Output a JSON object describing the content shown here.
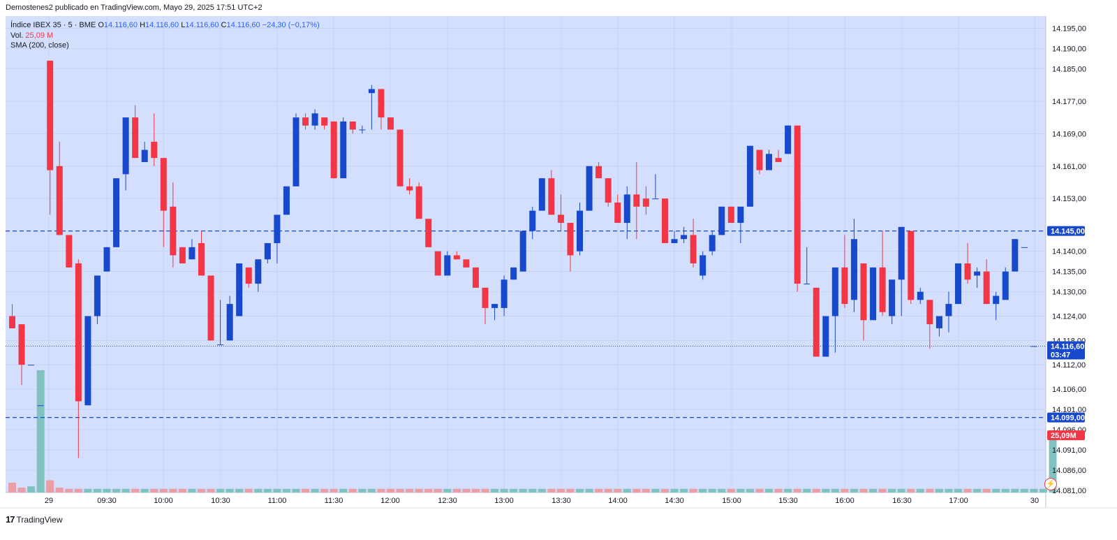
{
  "attribution": "Demostenes2 publicado en TradingView.com, Mayo 29, 2025 17:51 UTC+2",
  "legend": {
    "symbol": "Índice IBEX 35 · 5 · BME",
    "open_label": "O",
    "open": "14.116,60",
    "high_label": "H",
    "high": "14.116,60",
    "low_label": "L",
    "low": "14.116,60",
    "close_label": "C",
    "close": "14.116,60",
    "change": "−24,30 (−0,17%)",
    "volume_label": "Vol.",
    "volume": "25,09 M",
    "sma_label": "SMA (200, close)"
  },
  "footer": {
    "logo_mark": "17",
    "logo_text": "TradingView"
  },
  "icons": {
    "flash": "flash-icon"
  },
  "colors": {
    "background": "#d3dffd",
    "up": "#1848cc",
    "down": "#f23645",
    "vol_up": "#7fc3c0",
    "vol_down": "#eb9ea5",
    "level_line": "#1848cc",
    "badge_blue": "#1848cc",
    "badge_red": "#f23645"
  },
  "chart_data": {
    "type": "candlestick",
    "title": "Índice IBEX 35 · 5 · BME",
    "x_labels": [
      "29",
      "09:30",
      "10:00",
      "10:30",
      "11:00",
      "11:30",
      "12:00",
      "12:30",
      "13:00",
      "13:30",
      "14:00",
      "14:30",
      "15:00",
      "15:30",
      "16:00",
      "16:30",
      "17:00",
      "30"
    ],
    "y_ticks": [
      "14.195,00",
      "14.190,00",
      "14.185,00",
      "14.177,00",
      "14.169,00",
      "14.161,00",
      "14.153,00",
      "14.140,00",
      "14.135,00",
      "14.130,00",
      "14.124,00",
      "14.118,00",
      "14.112,00",
      "14.106,00",
      "14.101,00",
      "14.096,00",
      "14.091,00",
      "14.086,00",
      "14.081,00"
    ],
    "ylim": [
      14080.5,
      14198.0
    ],
    "grid": true,
    "horizontal_levels": [
      {
        "value": 14145.0,
        "label": "14.145,00",
        "style": "dashed"
      },
      {
        "value": 14099.0,
        "label": "14.099,00",
        "style": "dashed"
      }
    ],
    "last_price": {
      "value": 14116.6,
      "label": "14.116,60",
      "countdown": "03:47",
      "style": "dotted"
    },
    "volume_badge": "25,09M",
    "candles": [
      {
        "o": 14124.0,
        "h": 14127.0,
        "l": 14121.0,
        "c": 14121.0
      },
      {
        "o": 14122.0,
        "h": 14122.0,
        "l": 14107.0,
        "c": 14112.0
      },
      {
        "o": 14112.0,
        "h": 14112.0,
        "l": 14112.0,
        "c": 14112.0
      },
      {
        "o": 14102.0,
        "h": 14102.0,
        "l": 14102.0,
        "c": 14102.0
      },
      {
        "o": 14187.0,
        "h": 14187.0,
        "l": 14149.0,
        "c": 14160.0
      },
      {
        "o": 14161.0,
        "h": 14167.0,
        "l": 14144.0,
        "c": 14144.0
      },
      {
        "o": 14144.0,
        "h": 14144.0,
        "l": 14136.0,
        "c": 14136.0
      },
      {
        "o": 14137.0,
        "h": 14138.0,
        "l": 14089.0,
        "c": 14103.0
      },
      {
        "o": 14102.0,
        "h": 14124.0,
        "l": 14102.0,
        "c": 14124.0
      },
      {
        "o": 14124.0,
        "h": 14134.0,
        "l": 14122.0,
        "c": 14134.0
      },
      {
        "o": 14135.0,
        "h": 14141.0,
        "l": 14135.0,
        "c": 14141.0
      },
      {
        "o": 14141.0,
        "h": 14158.0,
        "l": 14141.0,
        "c": 14158.0
      },
      {
        "o": 14159.0,
        "h": 14173.0,
        "l": 14155.0,
        "c": 14173.0
      },
      {
        "o": 14173.0,
        "h": 14176.0,
        "l": 14163.0,
        "c": 14163.0
      },
      {
        "o": 14162.0,
        "h": 14167.0,
        "l": 14162.0,
        "c": 14165.0
      },
      {
        "o": 14167.0,
        "h": 14174.0,
        "l": 14161.0,
        "c": 14163.0
      },
      {
        "o": 14163.0,
        "h": 14163.0,
        "l": 14141.0,
        "c": 14150.0
      },
      {
        "o": 14151.0,
        "h": 14157.0,
        "l": 14136.0,
        "c": 14139.0
      },
      {
        "o": 14141.0,
        "h": 14141.0,
        "l": 14137.0,
        "c": 14137.0
      },
      {
        "o": 14138.0,
        "h": 14143.0,
        "l": 14138.0,
        "c": 14141.0
      },
      {
        "o": 14142.0,
        "h": 14145.0,
        "l": 14134.0,
        "c": 14134.0
      },
      {
        "o": 14134.0,
        "h": 14134.0,
        "l": 14118.0,
        "c": 14118.0
      },
      {
        "o": 14117.0,
        "h": 14128.0,
        "l": 14117.0,
        "c": 14117.0
      },
      {
        "o": 14118.0,
        "h": 14129.0,
        "l": 14118.0,
        "c": 14127.0
      },
      {
        "o": 14124.0,
        "h": 14137.0,
        "l": 14124.0,
        "c": 14137.0
      },
      {
        "o": 14136.0,
        "h": 14136.0,
        "l": 14131.0,
        "c": 14132.0
      },
      {
        "o": 14132.0,
        "h": 14138.0,
        "l": 14130.0,
        "c": 14138.0
      },
      {
        "o": 14138.0,
        "h": 14141.0,
        "l": 14137.0,
        "c": 14142.0
      },
      {
        "o": 14142.0,
        "h": 14149.0,
        "l": 14137.0,
        "c": 14149.0
      },
      {
        "o": 14149.0,
        "h": 14156.0,
        "l": 14149.0,
        "c": 14156.0
      },
      {
        "o": 14156.0,
        "h": 14174.0,
        "l": 14156.0,
        "c": 14173.0
      },
      {
        "o": 14173.0,
        "h": 14174.0,
        "l": 14170.0,
        "c": 14171.0
      },
      {
        "o": 14171.0,
        "h": 14175.0,
        "l": 14170.0,
        "c": 14174.0
      },
      {
        "o": 14173.0,
        "h": 14173.0,
        "l": 14170.0,
        "c": 14171.0
      },
      {
        "o": 14172.0,
        "h": 14172.0,
        "l": 14158.0,
        "c": 14158.0
      },
      {
        "o": 14158.0,
        "h": 14173.0,
        "l": 14158.0,
        "c": 14172.0
      },
      {
        "o": 14172.0,
        "h": 14172.0,
        "l": 14169.0,
        "c": 14170.0
      },
      {
        "o": 14170.0,
        "h": 14171.0,
        "l": 14169.0,
        "c": 14170.0
      },
      {
        "o": 14179.0,
        "h": 14181.0,
        "l": 14170.0,
        "c": 14180.0
      },
      {
        "o": 14180.0,
        "h": 14180.0,
        "l": 14170.0,
        "c": 14173.0
      },
      {
        "o": 14173.0,
        "h": 14173.0,
        "l": 14170.0,
        "c": 14170.0
      },
      {
        "o": 14170.0,
        "h": 14170.0,
        "l": 14156.0,
        "c": 14156.0
      },
      {
        "o": 14156.0,
        "h": 14158.0,
        "l": 14154.0,
        "c": 14155.0
      },
      {
        "o": 14156.0,
        "h": 14157.0,
        "l": 14148.0,
        "c": 14148.0
      },
      {
        "o": 14148.0,
        "h": 14148.0,
        "l": 14141.0,
        "c": 14141.0
      },
      {
        "o": 14140.0,
        "h": 14140.0,
        "l": 14134.0,
        "c": 14134.0
      },
      {
        "o": 14134.0,
        "h": 14140.0,
        "l": 14134.0,
        "c": 14139.0
      },
      {
        "o": 14139.0,
        "h": 14140.0,
        "l": 14138.0,
        "c": 14138.0
      },
      {
        "o": 14138.0,
        "h": 14138.0,
        "l": 14136.0,
        "c": 14136.0
      },
      {
        "o": 14136.0,
        "h": 14136.0,
        "l": 14131.0,
        "c": 14131.0
      },
      {
        "o": 14131.0,
        "h": 14131.0,
        "l": 14122.0,
        "c": 14126.0
      },
      {
        "o": 14126.0,
        "h": 14127.0,
        "l": 14123.0,
        "c": 14127.0
      },
      {
        "o": 14126.0,
        "h": 14134.0,
        "l": 14124.0,
        "c": 14133.0
      },
      {
        "o": 14133.0,
        "h": 14136.0,
        "l": 14133.0,
        "c": 14136.0
      },
      {
        "o": 14135.0,
        "h": 14145.0,
        "l": 14135.0,
        "c": 14145.0
      },
      {
        "o": 14145.0,
        "h": 14151.0,
        "l": 14143.0,
        "c": 14150.0
      },
      {
        "o": 14150.0,
        "h": 14158.0,
        "l": 14150.0,
        "c": 14158.0
      },
      {
        "o": 14158.0,
        "h": 14160.0,
        "l": 14149.0,
        "c": 14149.0
      },
      {
        "o": 14149.0,
        "h": 14154.0,
        "l": 14145.0,
        "c": 14147.0
      },
      {
        "o": 14147.0,
        "h": 14147.0,
        "l": 14135.0,
        "c": 14139.0
      },
      {
        "o": 14140.0,
        "h": 14152.0,
        "l": 14139.0,
        "c": 14150.0
      },
      {
        "o": 14150.0,
        "h": 14161.0,
        "l": 14150.0,
        "c": 14161.0
      },
      {
        "o": 14161.0,
        "h": 14162.0,
        "l": 14158.0,
        "c": 14158.0
      },
      {
        "o": 14158.0,
        "h": 14158.0,
        "l": 14151.0,
        "c": 14152.0
      },
      {
        "o": 14152.0,
        "h": 14154.0,
        "l": 14147.0,
        "c": 14147.0
      },
      {
        "o": 14147.0,
        "h": 14156.0,
        "l": 14143.0,
        "c": 14154.0
      },
      {
        "o": 14154.0,
        "h": 14162.0,
        "l": 14143.0,
        "c": 14151.0
      },
      {
        "o": 14153.0,
        "h": 14156.0,
        "l": 14149.0,
        "c": 14151.0
      },
      {
        "o": 14153.0,
        "h": 14159.0,
        "l": 14153.0,
        "c": 14153.0
      },
      {
        "o": 14153.0,
        "h": 14153.0,
        "l": 14142.0,
        "c": 14142.0
      },
      {
        "o": 14142.0,
        "h": 14145.0,
        "l": 14142.0,
        "c": 14143.0
      },
      {
        "o": 14143.0,
        "h": 14146.0,
        "l": 14142.0,
        "c": 14144.0
      },
      {
        "o": 14144.0,
        "h": 14148.0,
        "l": 14136.0,
        "c": 14137.0
      },
      {
        "o": 14134.0,
        "h": 14140.0,
        "l": 14133.0,
        "c": 14139.0
      },
      {
        "o": 14140.0,
        "h": 14145.0,
        "l": 14139.0,
        "c": 14144.0
      },
      {
        "o": 14144.0,
        "h": 14151.0,
        "l": 14144.0,
        "c": 14151.0
      },
      {
        "o": 14151.0,
        "h": 14151.0,
        "l": 14147.0,
        "c": 14147.0
      },
      {
        "o": 14147.0,
        "h": 14151.0,
        "l": 14142.0,
        "c": 14151.0
      },
      {
        "o": 14151.0,
        "h": 14166.0,
        "l": 14151.0,
        "c": 14166.0
      },
      {
        "o": 14165.0,
        "h": 14165.0,
        "l": 14159.0,
        "c": 14160.0
      },
      {
        "o": 14160.0,
        "h": 14165.0,
        "l": 14160.0,
        "c": 14164.0
      },
      {
        "o": 14163.0,
        "h": 14165.0,
        "l": 14162.0,
        "c": 14162.0
      },
      {
        "o": 14164.0,
        "h": 14171.0,
        "l": 14164.0,
        "c": 14171.0
      },
      {
        "o": 14171.0,
        "h": 14171.0,
        "l": 14130.0,
        "c": 14132.0
      },
      {
        "o": 14132.0,
        "h": 14141.0,
        "l": 14132.0,
        "c": 14132.0
      },
      {
        "o": 14131.0,
        "h": 14131.0,
        "l": 14114.0,
        "c": 14114.0
      },
      {
        "o": 14114.0,
        "h": 14124.0,
        "l": 14114.0,
        "c": 14124.0
      },
      {
        "o": 14124.0,
        "h": 14136.0,
        "l": 14115.0,
        "c": 14136.0
      },
      {
        "o": 14136.0,
        "h": 14144.0,
        "l": 14126.0,
        "c": 14127.0
      },
      {
        "o": 14128.0,
        "h": 14148.0,
        "l": 14125.0,
        "c": 14143.0
      },
      {
        "o": 14137.0,
        "h": 14137.0,
        "l": 14118.0,
        "c": 14123.0
      },
      {
        "o": 14123.0,
        "h": 14136.0,
        "l": 14123.0,
        "c": 14136.0
      },
      {
        "o": 14136.0,
        "h": 14145.0,
        "l": 14124.0,
        "c": 14125.0
      },
      {
        "o": 14124.0,
        "h": 14133.0,
        "l": 14122.0,
        "c": 14133.0
      },
      {
        "o": 14133.0,
        "h": 14146.0,
        "l": 14124.0,
        "c": 14146.0
      },
      {
        "o": 14145.0,
        "h": 14145.0,
        "l": 14127.0,
        "c": 14128.0
      },
      {
        "o": 14128.0,
        "h": 14131.0,
        "l": 14127.0,
        "c": 14130.0
      },
      {
        "o": 14128.0,
        "h": 14128.0,
        "l": 14116.0,
        "c": 14122.0
      },
      {
        "o": 14121.0,
        "h": 14124.0,
        "l": 14119.0,
        "c": 14124.0
      },
      {
        "o": 14124.0,
        "h": 14130.0,
        "l": 14120.0,
        "c": 14127.0
      },
      {
        "o": 14127.0,
        "h": 14137.0,
        "l": 14127.0,
        "c": 14137.0
      },
      {
        "o": 14137.0,
        "h": 14142.0,
        "l": 14132.0,
        "c": 14133.0
      },
      {
        "o": 14134.0,
        "h": 14136.0,
        "l": 14131.0,
        "c": 14135.0
      },
      {
        "o": 14135.0,
        "h": 14138.0,
        "l": 14127.0,
        "c": 14127.0
      },
      {
        "o": 14127.0,
        "h": 14130.0,
        "l": 14123.0,
        "c": 14129.0
      },
      {
        "o": 14128.0,
        "h": 14136.0,
        "l": 14128.0,
        "c": 14135.0
      },
      {
        "o": 14135.0,
        "h": 14143.0,
        "l": 14135.0,
        "c": 14143.0
      },
      {
        "o": 14141.0,
        "h": 14141.0,
        "l": 14141.0,
        "c": 14141.0
      },
      {
        "o": 14116.6,
        "h": 14116.6,
        "l": 14116.6,
        "c": 14116.6
      }
    ],
    "volume_max": 100,
    "volume": [
      8,
      4,
      5,
      100,
      10,
      4,
      3,
      3,
      3,
      3,
      3,
      3,
      3,
      3,
      3,
      3,
      3,
      3,
      3,
      3,
      3,
      3,
      3,
      3,
      3,
      3,
      3,
      3,
      3,
      3,
      3,
      3,
      3,
      3,
      3,
      3,
      3,
      3,
      3,
      3,
      3,
      3,
      3,
      3,
      3,
      3,
      3,
      3,
      3,
      3,
      3,
      3,
      3,
      3,
      3,
      3,
      3,
      3,
      3,
      3,
      3,
      3,
      3,
      3,
      3,
      3,
      3,
      3,
      3,
      3,
      3,
      3,
      3,
      3,
      3,
      3,
      3,
      3,
      3,
      3,
      3,
      3,
      3,
      3,
      3,
      3,
      3,
      3,
      3,
      3,
      3,
      3,
      3,
      3,
      3,
      3,
      3,
      3,
      3,
      3,
      3,
      3,
      3,
      3,
      3,
      3,
      3,
      3,
      3,
      3,
      51
    ]
  }
}
